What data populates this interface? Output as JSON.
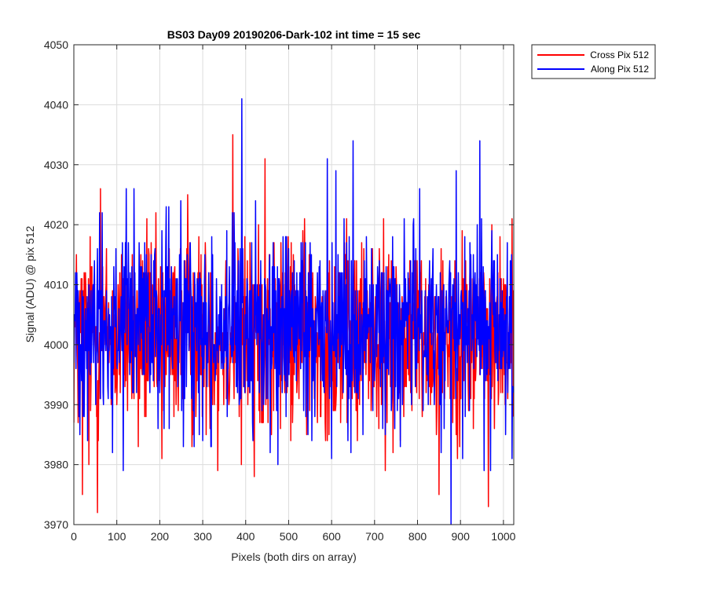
{
  "chart_data": {
    "type": "line",
    "title": "BS03 Day09 20190206-Dark-102 int time = 15 sec",
    "xlabel": "Pixels (both dirs on array)",
    "ylabel": "Signal (ADU) @ pix 512",
    "xlim": [
      0,
      1024
    ],
    "ylim": [
      3970,
      4050
    ],
    "xticks": [
      0,
      100,
      200,
      300,
      400,
      500,
      600,
      700,
      800,
      900,
      1000
    ],
    "yticks": [
      3970,
      3980,
      3990,
      4000,
      4010,
      4020,
      4030,
      4040,
      4050
    ],
    "grid": true,
    "legend_position": "outside-top-right",
    "n_points": 1024,
    "series": [
      {
        "name": "Cross Pix 512",
        "color": "#ff0000",
        "mean": 4002,
        "noise_range": [
          3983,
          4021
        ],
        "spikes": [
          [
            10,
            3987
          ],
          [
            20,
            3975
          ],
          [
            35,
            3980
          ],
          [
            55,
            3972
          ],
          [
            62,
            4026
          ],
          [
            100,
            3990
          ],
          [
            150,
            3983
          ],
          [
            170,
            4021
          ],
          [
            205,
            3981
          ],
          [
            255,
            3990
          ],
          [
            265,
            4025
          ],
          [
            275,
            3983
          ],
          [
            335,
            3979
          ],
          [
            370,
            4035
          ],
          [
            385,
            3988
          ],
          [
            390,
            3980
          ],
          [
            405,
            3990
          ],
          [
            420,
            3978
          ],
          [
            445,
            4031
          ],
          [
            460,
            3985
          ],
          [
            505,
            3984
          ],
          [
            610,
            3990
          ],
          [
            660,
            3984
          ],
          [
            725,
            3979
          ],
          [
            760,
            3984
          ],
          [
            850,
            3975
          ],
          [
            890,
            3985
          ],
          [
            930,
            3986
          ],
          [
            965,
            3973
          ],
          [
            1020,
            4021
          ]
        ]
      },
      {
        "name": "Along Pix 512",
        "color": "#0000ff",
        "mean": 4003,
        "noise_range": [
          3985,
          4022
        ],
        "spikes": [
          [
            60,
            4022
          ],
          [
            90,
            3982
          ],
          [
            115,
            3979
          ],
          [
            122,
            4026
          ],
          [
            140,
            4026
          ],
          [
            215,
            4023
          ],
          [
            255,
            3983
          ],
          [
            300,
            3984
          ],
          [
            320,
            3983
          ],
          [
            385,
            3990
          ],
          [
            391,
            4041
          ],
          [
            475,
            3980
          ],
          [
            495,
            4018
          ],
          [
            545,
            3985
          ],
          [
            590,
            4031
          ],
          [
            600,
            3981
          ],
          [
            610,
            4029
          ],
          [
            645,
            3982
          ],
          [
            650,
            4034
          ],
          [
            725,
            3985
          ],
          [
            805,
            4026
          ],
          [
            855,
            3982
          ],
          [
            878,
            3970
          ],
          [
            890,
            4029
          ],
          [
            905,
            3981
          ],
          [
            945,
            4034
          ],
          [
            955,
            3979
          ],
          [
            970,
            3979
          ],
          [
            1005,
            3985
          ],
          [
            1020,
            3981
          ]
        ]
      }
    ]
  }
}
